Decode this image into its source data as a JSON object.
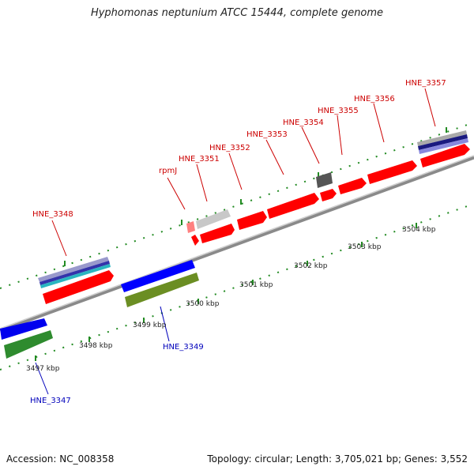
{
  "title": "Hyphomonas neptunium ATCC 15444, complete genome",
  "accession_label": "Accession: NC_008358",
  "summary_label": "Topology: circular; Length: 3,705,021 bp; Genes: 3,552",
  "colors": {
    "backbone": "#8a8a8a",
    "forward_gene": "#ff0000",
    "reverse_gene": "#0000ff",
    "green_gene": "#2e8b2e",
    "olive_gene": "#6b8e23",
    "grey_gene": "#bbbbbb",
    "dark_gene": "#555555",
    "tick": "#228b22",
    "top_label": "#cc0000",
    "bottom_label": "#0000bb"
  },
  "kbp_labels": [
    "3497 kbp",
    "3498 kbp",
    "3499 kbp",
    "3500 kbp",
    "3501 kbp",
    "3502 kbp",
    "3503 kbp",
    "3504 kbp"
  ],
  "top_labels": [
    "HNE_3348",
    "rpmJ",
    "HNE_3351",
    "HNE_3352",
    "HNE_3353",
    "HNE_3354",
    "HNE_3355",
    "HNE_3356",
    "HNE_3357"
  ],
  "bottom_labels": [
    "HNE_3347",
    "HNE_3349"
  ]
}
